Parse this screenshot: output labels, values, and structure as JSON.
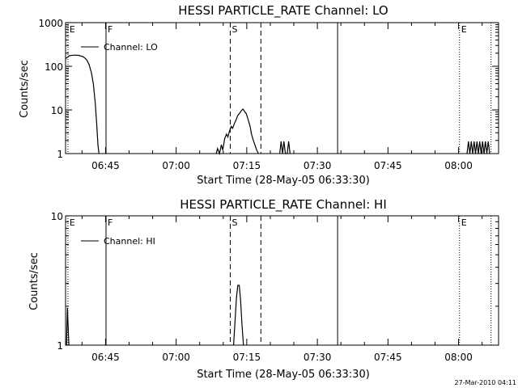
{
  "footer": {
    "timestamp": "27-Mar-2010 04:11"
  },
  "chart_data": [
    {
      "type": "line",
      "title": "HESSI PARTICLE_RATE Channel: LO",
      "xlabel": "Start Time (28-May-05 06:33:30)",
      "ylabel": "Counts/sec",
      "legend": "Channel: LO",
      "legend_position": "top-left",
      "y_scale": "log",
      "ylim": [
        1,
        1000
      ],
      "y_ticks": [
        {
          "v": 1,
          "label": "1"
        },
        {
          "v": 10,
          "label": "10"
        },
        {
          "v": 100,
          "label": "100"
        },
        {
          "v": 1000,
          "label": "1000"
        }
      ],
      "xlim": [
        36.5,
        128.5
      ],
      "x_ticks": [
        {
          "t": 45,
          "label": "06:45"
        },
        {
          "t": 60,
          "label": "07:00"
        },
        {
          "t": 75,
          "label": "07:15"
        },
        {
          "t": 90,
          "label": "07:30"
        },
        {
          "t": 105,
          "label": "07:45"
        },
        {
          "t": 120,
          "label": "08:00"
        }
      ],
      "markers": [
        {
          "t": 37.0,
          "label": "E",
          "style": "dotted"
        },
        {
          "t": 45.1,
          "label": "F",
          "style": "solid"
        },
        {
          "t": 71.5,
          "label": "S",
          "style": "dashed"
        },
        {
          "t": 78.0,
          "label": "",
          "style": "dashed"
        },
        {
          "t": 94.3,
          "label": "",
          "style": "solid"
        },
        {
          "t": 120.2,
          "label": "E",
          "style": "dotted"
        },
        {
          "t": 126.9,
          "label": "",
          "style": "dotted"
        }
      ],
      "segments": [
        [
          [
            36.5,
            150
          ],
          [
            37.3,
            175
          ],
          [
            38.3,
            180
          ],
          [
            39.3,
            178
          ],
          [
            40.3,
            165
          ],
          [
            41.0,
            140
          ],
          [
            41.5,
            110
          ],
          [
            42.0,
            70
          ],
          [
            42.4,
            40
          ],
          [
            42.8,
            15
          ],
          [
            43.1,
            5
          ],
          [
            43.4,
            1.5
          ],
          [
            43.6,
            1
          ]
        ],
        [
          [
            68.5,
            1
          ],
          [
            68.8,
            1.3
          ],
          [
            69.2,
            1
          ],
          [
            69.6,
            1.6
          ],
          [
            69.9,
            1.2
          ],
          [
            70.3,
            2.2
          ],
          [
            70.7,
            2.8
          ],
          [
            71.0,
            2.4
          ],
          [
            71.3,
            3.2
          ],
          [
            71.7,
            4.2
          ],
          [
            72.0,
            3.8
          ],
          [
            72.4,
            5.0
          ],
          [
            72.7,
            5.8
          ],
          [
            73.1,
            7.5
          ],
          [
            73.4,
            8.2
          ],
          [
            73.8,
            9.5
          ],
          [
            74.2,
            10.5
          ],
          [
            74.6,
            9.0
          ],
          [
            74.9,
            8.2
          ],
          [
            75.3,
            6.0
          ],
          [
            75.7,
            4.2
          ],
          [
            76.0,
            2.8
          ],
          [
            76.4,
            2.0
          ],
          [
            76.8,
            1.5
          ],
          [
            77.1,
            1.2
          ],
          [
            77.5,
            1
          ]
        ],
        [
          [
            82.0,
            1
          ],
          [
            82.3,
            1.9
          ],
          [
            82.6,
            1
          ],
          [
            82.9,
            1.9
          ],
          [
            83.2,
            1
          ],
          [
            83.6,
            1
          ],
          [
            83.9,
            1.9
          ],
          [
            84.2,
            1
          ]
        ],
        [
          [
            121.8,
            1
          ],
          [
            122.1,
            1.9
          ],
          [
            122.4,
            1
          ],
          [
            122.7,
            1.9
          ],
          [
            123.0,
            1
          ],
          [
            123.3,
            1.9
          ],
          [
            123.6,
            1
          ],
          [
            123.9,
            1.9
          ],
          [
            124.2,
            1
          ],
          [
            124.5,
            1.9
          ],
          [
            124.8,
            1
          ],
          [
            125.1,
            1.9
          ],
          [
            125.4,
            1
          ],
          [
            125.7,
            1.9
          ],
          [
            126.0,
            1
          ],
          [
            126.3,
            1.9
          ],
          [
            126.6,
            1
          ]
        ]
      ]
    },
    {
      "type": "line",
      "title": "HESSI PARTICLE_RATE Channel: HI",
      "xlabel": "Start Time (28-May-05 06:33:30)",
      "ylabel": "Counts/sec",
      "legend": "Channel: HI",
      "legend_position": "top-left",
      "y_scale": "log",
      "ylim": [
        1,
        10
      ],
      "y_ticks": [
        {
          "v": 1,
          "label": "1"
        },
        {
          "v": 10,
          "label": "10"
        }
      ],
      "xlim": [
        36.5,
        128.5
      ],
      "x_ticks": [
        {
          "t": 45,
          "label": "06:45"
        },
        {
          "t": 60,
          "label": "07:00"
        },
        {
          "t": 75,
          "label": "07:15"
        },
        {
          "t": 90,
          "label": "07:30"
        },
        {
          "t": 105,
          "label": "07:45"
        },
        {
          "t": 120,
          "label": "08:00"
        }
      ],
      "markers": [
        {
          "t": 37.0,
          "label": "E",
          "style": "dotted"
        },
        {
          "t": 45.1,
          "label": "F",
          "style": "solid"
        },
        {
          "t": 71.5,
          "label": "S",
          "style": "dashed"
        },
        {
          "t": 78.0,
          "label": "",
          "style": "dashed"
        },
        {
          "t": 94.3,
          "label": "",
          "style": "solid"
        },
        {
          "t": 120.2,
          "label": "E",
          "style": "dotted"
        },
        {
          "t": 126.9,
          "label": "",
          "style": "dotted"
        }
      ],
      "segments": [
        [
          [
            36.7,
            1
          ],
          [
            36.9,
            1.95
          ],
          [
            37.2,
            1
          ]
        ],
        [
          [
            72.2,
            1
          ],
          [
            72.5,
            1.5
          ],
          [
            72.8,
            2.3
          ],
          [
            73.1,
            2.9
          ],
          [
            73.4,
            2.9
          ],
          [
            73.7,
            2.2
          ],
          [
            74.0,
            1.4
          ],
          [
            74.3,
            1
          ]
        ]
      ]
    }
  ]
}
